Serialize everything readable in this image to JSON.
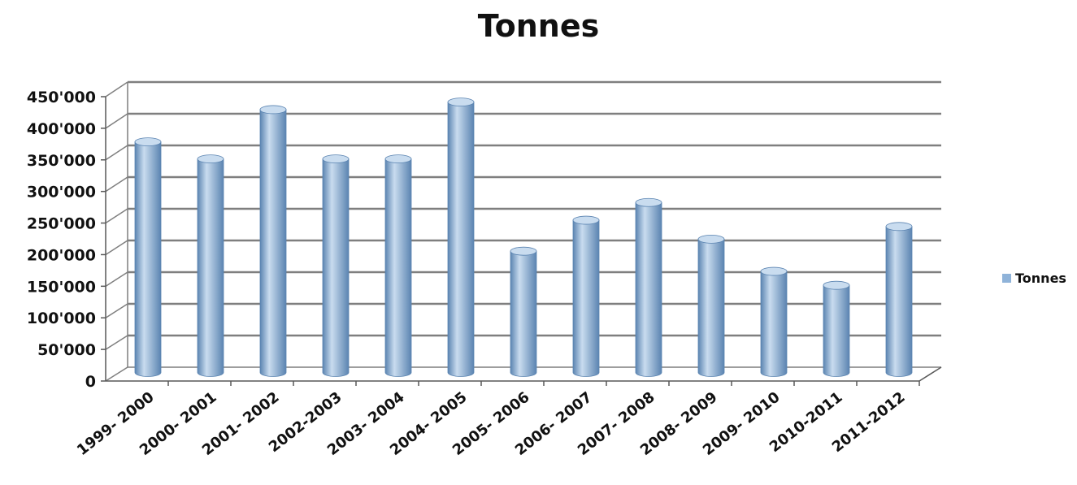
{
  "chart_data": {
    "type": "bar",
    "title": "Tonnes",
    "categories": [
      "1999- 2000",
      "2000- 2001",
      "2001- 2002",
      "2002-2003",
      "2003- 2004",
      "2004- 2005",
      "2005- 2006",
      "2006- 2007",
      "2007- 2008",
      "2008- 2009",
      "2009- 2010",
      "2010-2011",
      "2011-2012"
    ],
    "series": [
      {
        "name": "Tonnes",
        "values": [
          365000,
          338000,
          416000,
          338000,
          338000,
          428000,
          192000,
          241000,
          269000,
          211000,
          160000,
          138000,
          231000
        ]
      }
    ],
    "ylim": [
      0,
      450000
    ],
    "yticks": [
      "0",
      "50'000",
      "100'000",
      "150'000",
      "200'000",
      "250'000",
      "300'000",
      "350'000",
      "400'000",
      "450'000"
    ],
    "xlabel": "",
    "ylabel": "",
    "legend": "right",
    "grid": true,
    "style": "3d-cylinder",
    "colors": {
      "bar": "#8fb3d9",
      "bar_dark": "#5b84b1",
      "bar_light": "#c9dcef",
      "grid": "#7f7f7f"
    }
  }
}
